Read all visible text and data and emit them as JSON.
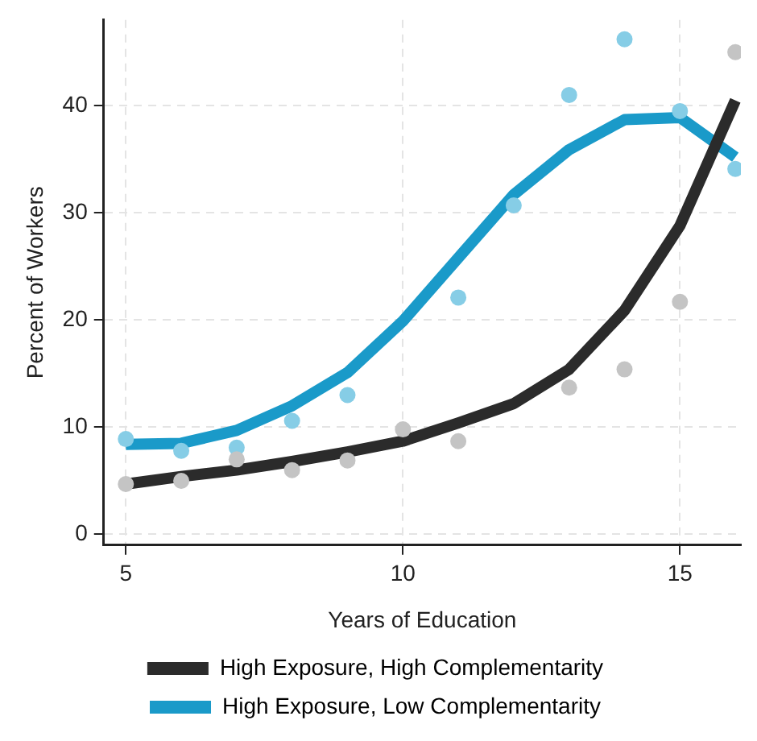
{
  "chart_data": {
    "type": "line",
    "xlabel": "Years of Education",
    "ylabel": "Percent of Workers",
    "x": [
      5,
      6,
      7,
      8,
      9,
      10,
      11,
      12,
      13,
      14,
      15,
      16
    ],
    "xlim": [
      4.6,
      16.1
    ],
    "xticks": [
      5,
      10,
      15
    ],
    "ylim": [
      -1,
      48
    ],
    "yticks": [
      0,
      10,
      20,
      30,
      40
    ],
    "grid": true,
    "legend": "bottom",
    "series": [
      {
        "type": "scatter",
        "marker": "circle",
        "color": "#c4c4c4",
        "values": [
          4.7,
          5.0,
          7.0,
          6.0,
          6.9,
          9.8,
          8.7,
          null,
          13.7,
          15.4,
          21.7,
          45.0
        ]
      },
      {
        "type": "scatter",
        "marker": "circle",
        "color": "#86cde6",
        "values": [
          8.9,
          7.8,
          8.1,
          10.6,
          13.0,
          null,
          22.1,
          30.7,
          41.0,
          46.2,
          39.5,
          34.1
        ]
      },
      {
        "marker": "none",
        "name": "High Exposure, High Complementarity",
        "color": "#2b2b2b",
        "values": [
          4.7,
          5.4,
          6.0,
          6.8,
          7.7,
          8.7,
          10.4,
          12.2,
          15.4,
          20.9,
          28.8,
          40.5
        ]
      },
      {
        "marker": "none",
        "name": "High Exposure, Low Complementarity",
        "color": "#1a9ac9",
        "values": [
          8.4,
          8.5,
          9.7,
          12.0,
          15.1,
          19.9,
          25.8,
          31.7,
          35.9,
          38.7,
          38.9,
          35.2
        ]
      }
    ]
  }
}
